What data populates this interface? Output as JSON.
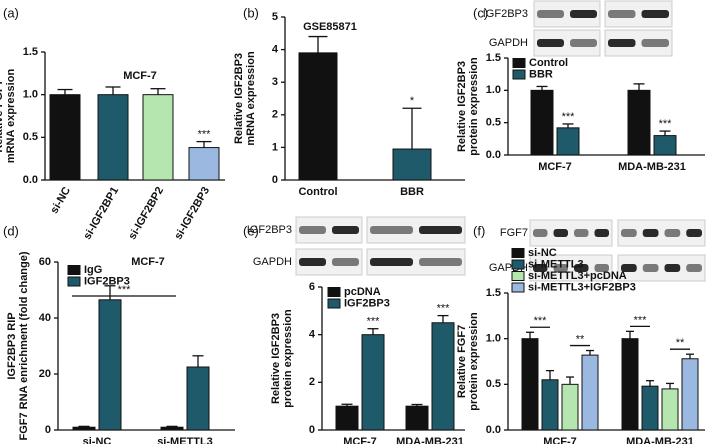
{
  "chart_data": [
    {
      "type": "bar",
      "panel": "(a)",
      "title": "MCF-7",
      "ylabel": [
        "Relative FGF7",
        "mRNA expression"
      ],
      "categories": [
        "si-NC",
        "si-IGF2BP1",
        "si-IGF2BP2",
        "si-IGF2BP3"
      ],
      "values": [
        1.0,
        1.0,
        1.0,
        0.38
      ],
      "errors": [
        0.06,
        0.09,
        0.07,
        0.07
      ],
      "colors": [
        "#111111",
        "#1f5a6b",
        "#b5e6b0",
        "#9bb9e0"
      ],
      "significance": [
        null,
        null,
        null,
        "***"
      ],
      "ylim": [
        0,
        1.5
      ],
      "yticks": [
        {
          "value": 0,
          "label": "0.0"
        },
        {
          "value": 0.5,
          "label": "0.5"
        },
        {
          "value": 1,
          "label": "1.0"
        },
        {
          "value": 1.5,
          "label": "1.5"
        }
      ]
    },
    {
      "type": "bar",
      "panel": "(b)",
      "title": "GSE85871",
      "ylabel": [
        "Relative IGF2BP3",
        "mRNA expression"
      ],
      "categories": [
        "Control",
        "BBR"
      ],
      "values": [
        3.9,
        0.95
      ],
      "errors": [
        0.5,
        1.25
      ],
      "colors": [
        "#111111",
        "#1f5a6b"
      ],
      "significance": [
        null,
        "*"
      ],
      "ylim": [
        0,
        5
      ],
      "yticks": [
        0,
        1,
        2,
        3,
        4,
        5
      ]
    },
    {
      "type": "grouped_bar",
      "panel": "(c)",
      "blot_labels": [
        "IGF2BP3",
        "GAPDH"
      ],
      "ylabel": [
        "Relative IGF2BP3",
        "protein expression"
      ],
      "categories": [
        "MCF-7",
        "MDA-MB-231"
      ],
      "series": [
        {
          "name": "Control",
          "color": "#111111",
          "values": [
            1.0,
            1.0
          ],
          "errors": [
            0.06,
            0.1
          ],
          "significance": [
            null,
            null
          ]
        },
        {
          "name": "BBR",
          "color": "#1f5a6b",
          "values": [
            0.42,
            0.3
          ],
          "errors": [
            0.06,
            0.07
          ],
          "significance": [
            "***",
            "***"
          ]
        }
      ],
      "ylim": [
        0,
        1.5
      ],
      "yticks": [
        {
          "value": 0,
          "label": "0.0"
        },
        {
          "value": 0.5,
          "label": "0.5"
        },
        {
          "value": 1,
          "label": "1.0"
        },
        {
          "value": 1.5,
          "label": "1.5"
        }
      ]
    },
    {
      "type": "grouped_bar",
      "panel": "(d)",
      "title": "MCF-7",
      "ylabel": [
        "IGF2BP3 RIP",
        "FGF7 RNA enrichment (fold change)"
      ],
      "categories": [
        "si-NC",
        "si-METTL3"
      ],
      "series": [
        {
          "name": "IgG",
          "color": "#111111",
          "values": [
            1,
            1
          ],
          "errors": [
            0.3,
            0.3
          ],
          "significance": [
            null,
            null
          ]
        },
        {
          "name": "IGF2BP3",
          "color": "#1f5a6b",
          "values": [
            46.5,
            22.5
          ],
          "errors": [
            5,
            4
          ],
          "significance": [
            null,
            null
          ]
        }
      ],
      "annotations": [
        "***"
      ],
      "ylim": [
        0,
        60
      ],
      "yticks": [
        0,
        20,
        40,
        60
      ]
    },
    {
      "type": "grouped_bar",
      "panel": "(e)",
      "blot_labels": [
        "IGF2BP3",
        "GAPDH"
      ],
      "ylabel": [
        "Relative IGF2BP3",
        "protein expression"
      ],
      "categories": [
        "MCF-7",
        "MDA-MB-231"
      ],
      "series": [
        {
          "name": "pcDNA",
          "color": "#111111",
          "values": [
            1,
            1
          ],
          "errors": [
            0.08,
            0.07
          ],
          "significance": [
            null,
            null
          ]
        },
        {
          "name": "IGF2BP3",
          "color": "#1f5a6b",
          "values": [
            4.0,
            4.5
          ],
          "errors": [
            0.25,
            0.3
          ],
          "significance": [
            "***",
            "***"
          ]
        }
      ],
      "ylim": [
        0,
        6
      ],
      "yticks": [
        0,
        2,
        4,
        6
      ]
    },
    {
      "type": "grouped_bar",
      "panel": "(f)",
      "blot_labels": [
        "FGF7",
        "GAPDH"
      ],
      "ylabel": [
        "Relative FGF7",
        "protein expression"
      ],
      "categories": [
        "MCF-7",
        "MDA-MB-231"
      ],
      "series": [
        {
          "name": "si-NC",
          "color": "#111111",
          "values": [
            1.0,
            1.0
          ],
          "errors": [
            0.07,
            0.08
          ],
          "significance": [
            null,
            null
          ]
        },
        {
          "name": "si-METTL3",
          "color": "#1f5a6b",
          "values": [
            0.55,
            0.48
          ],
          "errors": [
            0.1,
            0.06
          ],
          "significance": [
            null,
            null
          ]
        },
        {
          "name": "si-METTL3+pcDNA",
          "color": "#b5e6b0",
          "values": [
            0.5,
            0.45
          ],
          "errors": [
            0.08,
            0.06
          ],
          "significance": [
            null,
            null
          ]
        },
        {
          "name": "si-METTL3+IGF2BP3",
          "color": "#9bb9e0",
          "values": [
            0.82,
            0.78
          ],
          "errors": [
            0.05,
            0.05
          ],
          "significance": [
            null,
            null
          ]
        }
      ],
      "annotations": [
        "***",
        "**",
        "***",
        "**"
      ],
      "ylim": [
        0,
        1.5
      ],
      "yticks": [
        {
          "value": 0,
          "label": "0.0"
        },
        {
          "value": 0.5,
          "label": "0.5"
        },
        {
          "value": 1,
          "label": "1.0"
        },
        {
          "value": 1.5,
          "label": "1.5"
        }
      ]
    }
  ]
}
